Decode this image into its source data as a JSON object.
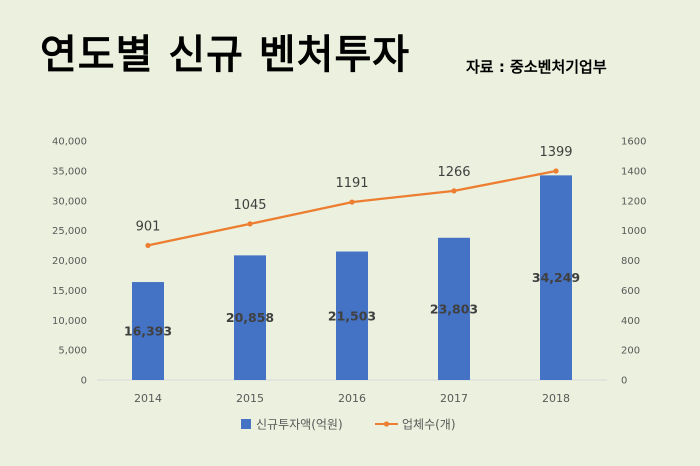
{
  "title": "연도별 신규 벤처투자",
  "source": "자료 : 중소벤처기업부",
  "chart_data": {
    "type": "bar",
    "categories": [
      "2014",
      "2015",
      "2016",
      "2017",
      "2018"
    ],
    "series": [
      {
        "name": "신규투자액(억원)",
        "type": "bar",
        "axis": "left",
        "color": "#4472c4",
        "values": [
          16393,
          20858,
          21503,
          23803,
          34249
        ],
        "labels": [
          "16,393",
          "20,858",
          "21,503",
          "23,803",
          "34,249"
        ]
      },
      {
        "name": "업체수(개)",
        "type": "line",
        "axis": "right",
        "color": "#ed7d31",
        "values": [
          901,
          1045,
          1191,
          1266,
          1399
        ],
        "labels": [
          "901",
          "1045",
          "1191",
          "1266",
          "1399"
        ]
      }
    ],
    "y_left": {
      "ylim": [
        0,
        40000
      ],
      "ticks": [
        "0",
        "5,000",
        "10,000",
        "15,000",
        "20,000",
        "25,000",
        "30,000",
        "35,000",
        "40,000"
      ]
    },
    "y_right": {
      "ylim": [
        0,
        1600
      ],
      "ticks": [
        "0",
        "200",
        "400",
        "600",
        "800",
        "1000",
        "1200",
        "1400",
        "1600"
      ]
    },
    "grid": false,
    "legend_position": "bottom"
  }
}
